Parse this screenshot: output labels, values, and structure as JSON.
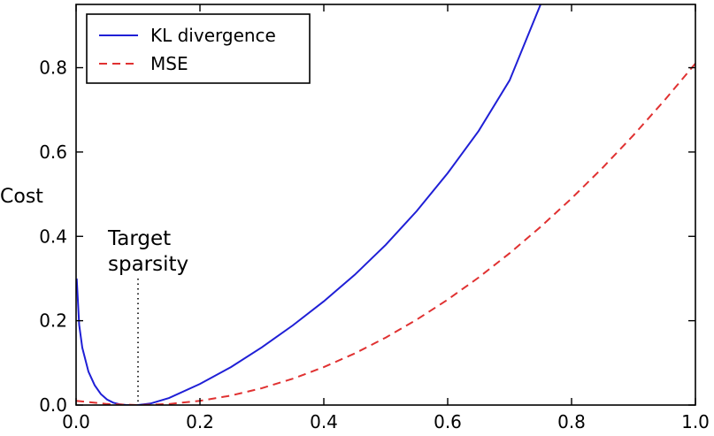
{
  "chart_data": {
    "type": "line",
    "title": "",
    "xlabel": "",
    "ylabel": "Cost",
    "xlim": [
      0.0,
      1.0
    ],
    "ylim": [
      0.0,
      0.95
    ],
    "grid": false,
    "legend_position": "top-left",
    "xticks": [
      "0.0",
      "0.2",
      "0.4",
      "0.6",
      "0.8",
      "1.0"
    ],
    "yticks": [
      "0.0",
      "0.2",
      "0.4",
      "0.6",
      "0.8"
    ],
    "series": [
      {
        "name": "KL divergence",
        "color": "#1f1fd6",
        "linestyle": "solid",
        "x": [
          0.001,
          0.005,
          0.01,
          0.02,
          0.03,
          0.04,
          0.05,
          0.06,
          0.07,
          0.08,
          0.09,
          0.1,
          0.12,
          0.15,
          0.2,
          0.25,
          0.3,
          0.35,
          0.4,
          0.45,
          0.5,
          0.55,
          0.6,
          0.65,
          0.7,
          0.75
        ],
        "y": [
          0.3,
          0.19,
          0.136,
          0.079,
          0.047,
          0.026,
          0.013,
          0.0057,
          0.0018,
          0.0003,
          0.0,
          0.0,
          0.0036,
          0.0166,
          0.05,
          0.09,
          0.137,
          0.189,
          0.246,
          0.309,
          0.38,
          0.46,
          0.55,
          0.65,
          0.77,
          0.95
        ]
      },
      {
        "name": "MSE",
        "color": "#e03131",
        "linestyle": "dashed",
        "x": [
          0.0,
          0.05,
          0.1,
          0.15,
          0.2,
          0.25,
          0.3,
          0.35,
          0.4,
          0.45,
          0.5,
          0.55,
          0.6,
          0.65,
          0.7,
          0.75,
          0.8,
          0.85,
          0.9,
          0.95,
          1.0
        ],
        "y": [
          0.01,
          0.0025,
          0.0,
          0.0025,
          0.01,
          0.0225,
          0.04,
          0.0625,
          0.09,
          0.1225,
          0.16,
          0.2025,
          0.25,
          0.3025,
          0.36,
          0.4225,
          0.49,
          0.5625,
          0.64,
          0.7225,
          0.81
        ]
      }
    ],
    "annotations": [
      {
        "text_lines": [
          "Target",
          "sparsity"
        ],
        "x": 0.1,
        "line_y_top": 0.3,
        "line_style": "dotted"
      }
    ]
  }
}
